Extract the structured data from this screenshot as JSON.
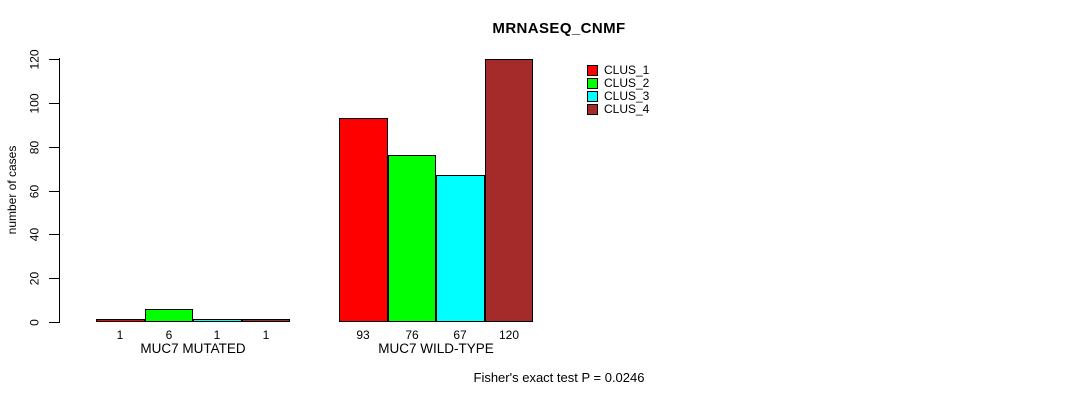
{
  "title": "MRNASEQ_CNMF",
  "footer": "Fisher's exact test P = 0.0246",
  "colors": {
    "clus_1": "#ff0000",
    "clus_2": "#00ff00",
    "clus_3": "#00ffff",
    "clus_4": "#a52a2a",
    "axis": "#000000",
    "background": "#ffffff"
  },
  "chart_data": {
    "type": "bar",
    "title": "MRNASEQ_CNMF",
    "xlabel": "",
    "ylabel": "number of cases",
    "ylim": [
      0,
      120
    ],
    "yticks": [
      0,
      20,
      40,
      60,
      80,
      100,
      120
    ],
    "grid": false,
    "legend_position": "top-right",
    "categories": [
      "MUC7 MUTATED",
      "MUC7 WILD-TYPE"
    ],
    "series": [
      {
        "name": "CLUS_1",
        "color": "#ff0000",
        "values": [
          1,
          93
        ]
      },
      {
        "name": "CLUS_2",
        "color": "#00ff00",
        "values": [
          6,
          76
        ]
      },
      {
        "name": "CLUS_3",
        "color": "#00ffff",
        "values": [
          1,
          67
        ]
      },
      {
        "name": "CLUS_4",
        "color": "#a52a2a",
        "values": [
          1,
          120
        ]
      }
    ],
    "bar_value_labels": [
      [
        "1",
        "6",
        "1",
        "1"
      ],
      [
        "93",
        "76",
        "67",
        "120"
      ]
    ],
    "annotation": "Fisher's exact test P = 0.0246"
  }
}
